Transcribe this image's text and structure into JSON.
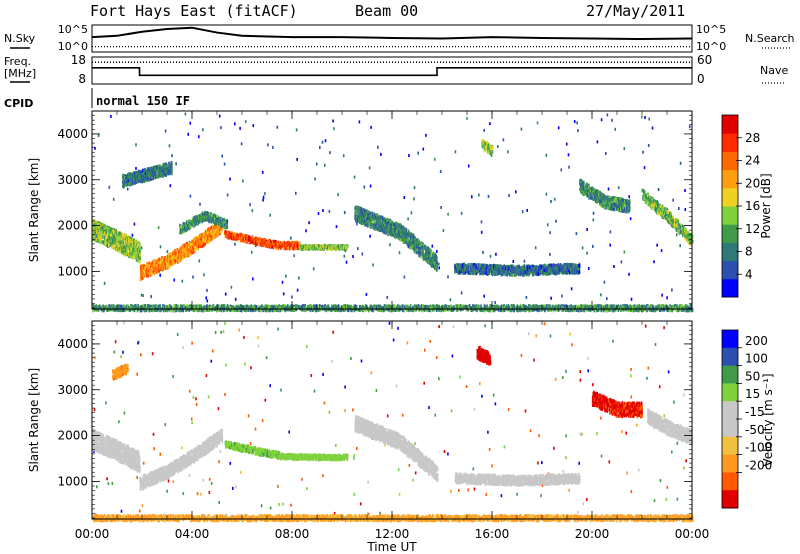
{
  "header": {
    "station": "Fort Hays East (fitACF)",
    "beam": "Beam 00",
    "date": "27/May/2011"
  },
  "left_labels": {
    "nsky": "N.Sky",
    "freq": "Freq.",
    "freq_unit": "[MHz]",
    "cpid": "CPID"
  },
  "right_labels": {
    "nsearch": "N.Search",
    "nave": "Nave"
  },
  "cpid_text": "normal 150 IF",
  "colors": {
    "power_scale": [
      "#0000ff",
      "#2c4fb0",
      "#2f7a78",
      "#3f9b4a",
      "#7fd23c",
      "#f0d020",
      "#ff9f10",
      "#ff6a00",
      "#ff2a00",
      "#e00000"
    ],
    "velocity_scale": [
      "#e00000",
      "#ff5a00",
      "#ff9a20",
      "#f0c040",
      "#c8c8c8",
      "#c8c8c8",
      "#7fd23c",
      "#3f9b4a",
      "#2c4fb0",
      "#0000ff"
    ],
    "ground_scatter": "#c8c8c8"
  },
  "chart_data": [
    {
      "type": "line",
      "name": "noise-panel",
      "left_axis_label": "N.Sky",
      "right_axis_label": "N.Search",
      "left_ticks": [
        "10^5",
        "10^0"
      ],
      "right_ticks": [
        "10^5",
        "10^0"
      ],
      "xlim": [
        0,
        24
      ],
      "series": [
        {
          "style": "solid",
          "x": [
            0,
            1,
            2,
            3,
            4,
            5,
            6,
            8,
            10,
            12,
            14,
            16,
            18,
            20,
            22,
            24
          ],
          "y": [
            0.55,
            0.6,
            0.75,
            0.85,
            0.9,
            0.72,
            0.6,
            0.55,
            0.55,
            0.52,
            0.5,
            0.55,
            0.52,
            0.5,
            0.48,
            0.5
          ]
        },
        {
          "style": "dotted",
          "x": [
            0,
            24
          ],
          "y": [
            0.05,
            0.05
          ]
        }
      ]
    },
    {
      "type": "line",
      "name": "freq-panel",
      "left_axis_label": "Freq. [MHz]",
      "right_axis_label": "Nave",
      "left_ticks": [
        18,
        8
      ],
      "right_ticks": [
        60,
        0
      ],
      "xlim": [
        0,
        24
      ],
      "series": [
        {
          "style": "solid",
          "name_hidden": "freq",
          "x": [
            0,
            1.9,
            1.9,
            13.8,
            13.8,
            24
          ],
          "y": [
            14,
            14,
            11.2,
            11.2,
            14,
            14
          ]
        },
        {
          "style": "dotted",
          "name_hidden": "nave",
          "x": [
            0,
            24
          ],
          "y": [
            55,
            55
          ]
        }
      ]
    },
    {
      "type": "heatmap",
      "name": "power-panel",
      "xlabel": "",
      "ylabel": "Slant Range [km]",
      "xlim": [
        0,
        24
      ],
      "ylim": [
        180,
        4500
      ],
      "yticks": [
        1000,
        2000,
        3000,
        4000
      ],
      "colorbar_label": "Power [dB]",
      "colorbar_ticks": [
        4,
        8,
        12,
        16,
        20,
        24,
        28
      ],
      "colorbar_range": [
        0,
        32
      ],
      "features": [
        {
          "x": [
            0,
            1,
            1.9
          ],
          "y": [
            1950,
            1700,
            1450
          ],
          "width": 420,
          "value": 14
        },
        {
          "x": [
            1.9,
            3,
            4.2,
            5.2
          ],
          "y": [
            1000,
            1250,
            1650,
            2050
          ],
          "width": 280,
          "value": 22
        },
        {
          "x": [
            5.3,
            6.5,
            7.5,
            8.3
          ],
          "y": [
            1850,
            1700,
            1600,
            1600
          ],
          "width": 140,
          "value": 26
        },
        {
          "x": [
            8.3,
            10.2
          ],
          "y": [
            1560,
            1560
          ],
          "width": 80,
          "value": 14
        },
        {
          "x": [
            3.5,
            4.5,
            5.4
          ],
          "y": [
            1950,
            2250,
            2050
          ],
          "width": 180,
          "value": 10
        },
        {
          "x": [
            1.2,
            3.2
          ],
          "y": [
            3000,
            3300
          ],
          "width": 250,
          "value": 8
        },
        {
          "x": [
            10.5,
            12.3,
            13.8
          ],
          "y": [
            2300,
            1900,
            1200
          ],
          "width": 320,
          "value": 9
        },
        {
          "x": [
            14.5,
            17,
            19.5
          ],
          "y": [
            1100,
            1050,
            1100
          ],
          "width": 200,
          "value": 7
        },
        {
          "x": [
            15.6,
            16
          ],
          "y": [
            3800,
            3650
          ],
          "width": 200,
          "value": 14
        },
        {
          "x": [
            19.5,
            20.5,
            21.5
          ],
          "y": [
            2900,
            2550,
            2450
          ],
          "width": 260,
          "value": 9
        },
        {
          "x": [
            22,
            23,
            24
          ],
          "y": [
            2700,
            2250,
            1700
          ],
          "width": 240,
          "value": 13
        },
        {
          "x": [
            0,
            24
          ],
          "y": [
            220,
            220
          ],
          "width": 140,
          "value": 10
        }
      ]
    },
    {
      "type": "heatmap",
      "name": "velocity-panel",
      "xlabel": "Time UT",
      "ylabel": "Slant Range [km]",
      "xlim": [
        0,
        24
      ],
      "ylim": [
        180,
        4500
      ],
      "yticks": [
        1000,
        2000,
        3000,
        4000
      ],
      "xticks": [
        "00:00",
        "04:00",
        "08:00",
        "12:00",
        "16:00",
        "20:00",
        "00:00"
      ],
      "colorbar_label": "Velocity [m s⁻¹]",
      "colorbar_ticks": [
        "200",
        "100",
        "50",
        "15",
        "-15",
        "-50",
        "-100",
        "-200"
      ],
      "features": [
        {
          "x": [
            0,
            1,
            1.9
          ],
          "y": [
            1950,
            1700,
            1450
          ],
          "width": 420,
          "value": 0,
          "ground": true
        },
        {
          "x": [
            1.9,
            3,
            4.2,
            5.2
          ],
          "y": [
            1000,
            1250,
            1650,
            2050
          ],
          "width": 280,
          "value": 0,
          "ground": true
        },
        {
          "x": [
            5.3,
            6.5,
            7.5
          ],
          "y": [
            1850,
            1700,
            1600
          ],
          "width": 140,
          "value": 60
        },
        {
          "x": [
            7.5,
            9,
            10.2
          ],
          "y": [
            1580,
            1560,
            1560
          ],
          "width": 100,
          "value": 40
        },
        {
          "x": [
            0.8,
            1.4
          ],
          "y": [
            3350,
            3500
          ],
          "width": 200,
          "value": -60
        },
        {
          "x": [
            10.5,
            12.3,
            13.8
          ],
          "y": [
            2300,
            1900,
            1200
          ],
          "width": 320,
          "value": 0,
          "ground": true
        },
        {
          "x": [
            14.5,
            17,
            19.5
          ],
          "y": [
            1100,
            1050,
            1100
          ],
          "width": 200,
          "value": 0,
          "ground": true
        },
        {
          "x": [
            15.4,
            15.9
          ],
          "y": [
            3850,
            3700
          ],
          "width": 260,
          "value": -220
        },
        {
          "x": [
            20,
            21,
            22
          ],
          "y": [
            2850,
            2600,
            2600
          ],
          "width": 300,
          "value": -160
        },
        {
          "x": [
            22.2,
            23.2,
            24
          ],
          "y": [
            2450,
            2150,
            2000
          ],
          "width": 300,
          "value": 0,
          "ground": true
        },
        {
          "x": [
            0,
            24
          ],
          "y": [
            220,
            220
          ],
          "width": 140,
          "value": -40
        }
      ]
    }
  ]
}
